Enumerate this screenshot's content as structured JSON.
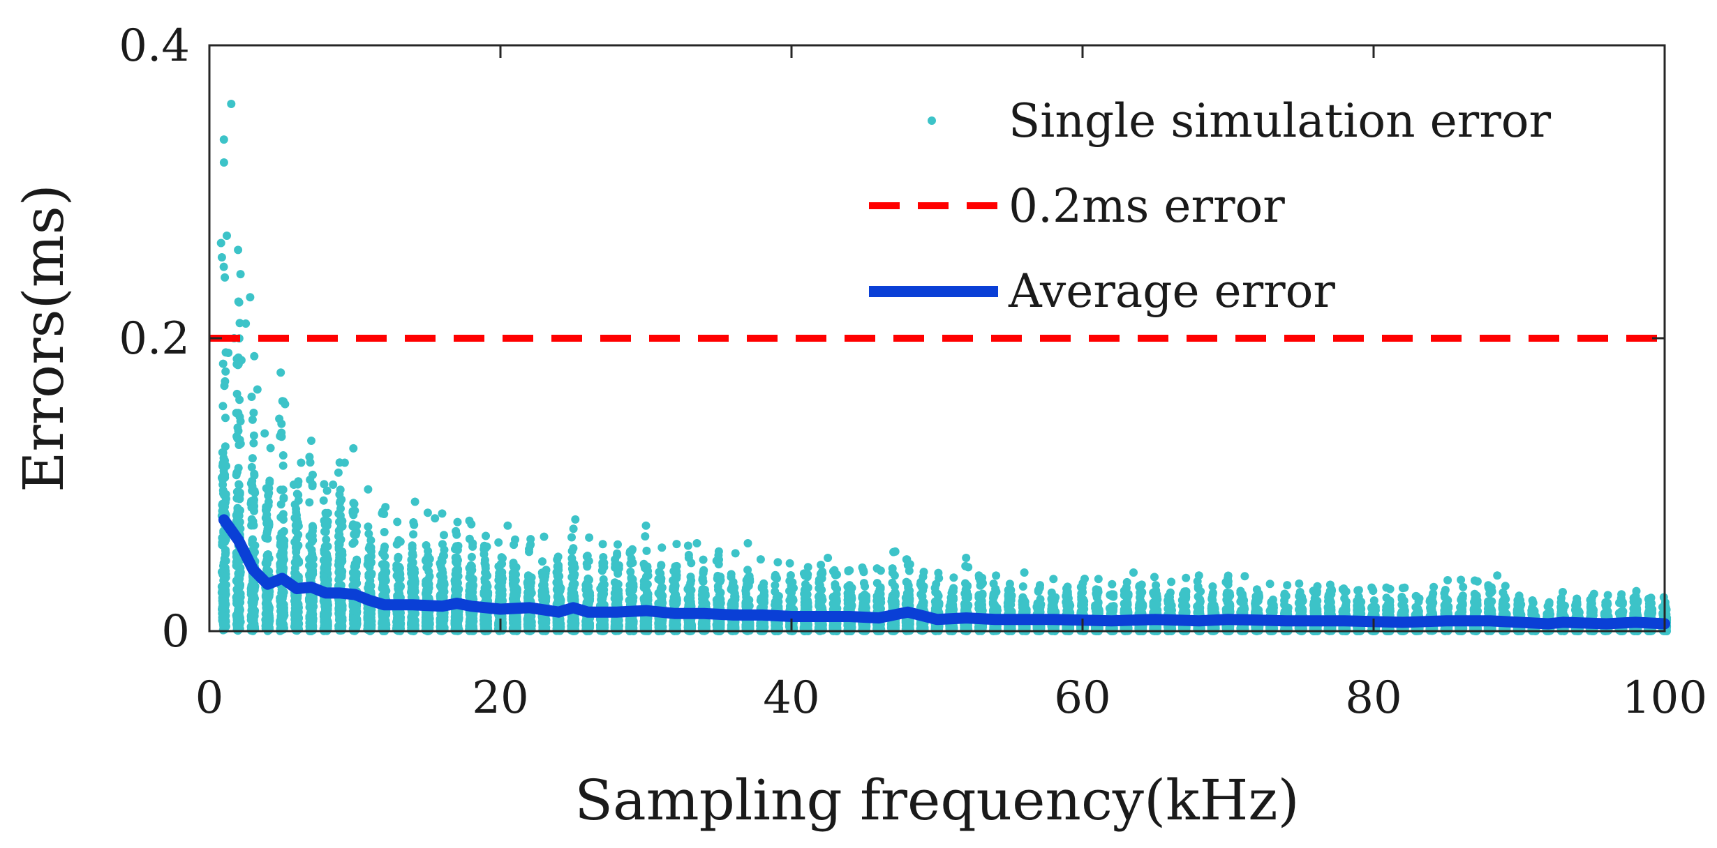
{
  "chart_data": {
    "type": "scatter",
    "title": "",
    "xlabel": "Sampling frequency(kHz)",
    "ylabel": "Errors(ms)",
    "xlim": [
      0,
      100
    ],
    "ylim": [
      0,
      0.4
    ],
    "xticks": [
      0,
      20,
      40,
      60,
      80,
      100
    ],
    "xtick_labels": [
      "0",
      "20",
      "40",
      "60",
      "80",
      "100"
    ],
    "yticks": [
      0,
      0.2,
      0.4
    ],
    "ytick_labels": [
      "0",
      "0.2",
      "0.4"
    ],
    "grid": false,
    "legend_position": "top-right",
    "series": [
      {
        "name": "Single simulation error",
        "kind": "scatter",
        "color": "#3cc3c8",
        "points_per_frequency": 150,
        "x_values": "1 to 100 kHz, step 1",
        "points": [
          [
            1.5,
            0.36
          ],
          [
            1.0,
            0.32
          ],
          [
            1.2,
            0.27
          ],
          [
            0.8,
            0.265
          ],
          [
            2.0,
            0.225
          ],
          [
            2.8,
            0.228
          ],
          [
            2.5,
            0.21
          ],
          [
            1.7,
            0.2
          ],
          [
            1.3,
            0.19
          ],
          [
            2.2,
            0.185
          ],
          [
            3.3,
            0.165
          ],
          [
            2.9,
            0.16
          ],
          [
            5.2,
            0.155
          ],
          [
            4.8,
            0.145
          ],
          [
            3.8,
            0.135
          ],
          [
            7.0,
            0.13
          ],
          [
            4.2,
            0.125
          ],
          [
            9.3,
            0.115
          ],
          [
            6.3,
            0.115
          ],
          [
            8.5,
            0.1
          ],
          [
            5.8,
            0.1
          ],
          [
            12.0,
            0.08
          ],
          [
            15.5,
            0.077
          ],
          [
            18.0,
            0.073
          ],
          [
            20.5,
            0.072
          ],
          [
            30.0,
            0.072
          ],
          [
            33.5,
            0.06
          ],
          [
            37.0,
            0.06
          ],
          [
            42.5,
            0.05
          ],
          [
            48.0,
            0.045
          ],
          [
            52.0,
            0.05
          ],
          [
            56.0,
            0.04
          ],
          [
            63.5,
            0.04
          ],
          [
            68.0,
            0.038
          ],
          [
            86.0,
            0.035
          ],
          [
            88.5,
            0.038
          ]
        ]
      },
      {
        "name": "0.2ms error",
        "kind": "reference_line",
        "color": "#ff0000",
        "y": 0.2
      },
      {
        "name": "Average error",
        "kind": "line",
        "color": "#0a3fd6",
        "x": [
          1,
          2,
          3,
          4,
          5,
          6,
          7,
          8,
          9,
          10,
          11,
          12,
          14,
          16,
          17,
          18,
          20,
          22,
          24,
          25,
          26,
          28,
          30,
          32,
          34,
          36,
          38,
          40,
          44,
          46,
          48,
          50,
          52,
          54,
          58,
          62,
          65,
          68,
          70,
          74,
          78,
          82,
          85,
          88,
          90,
          92,
          93,
          96,
          98,
          100
        ],
        "y": [
          0.076,
          0.062,
          0.042,
          0.032,
          0.036,
          0.029,
          0.03,
          0.026,
          0.026,
          0.025,
          0.021,
          0.018,
          0.018,
          0.017,
          0.019,
          0.017,
          0.015,
          0.016,
          0.013,
          0.016,
          0.013,
          0.013,
          0.014,
          0.012,
          0.012,
          0.011,
          0.011,
          0.01,
          0.01,
          0.009,
          0.013,
          0.008,
          0.009,
          0.008,
          0.008,
          0.007,
          0.008,
          0.007,
          0.008,
          0.007,
          0.007,
          0.006,
          0.007,
          0.007,
          0.006,
          0.005,
          0.006,
          0.005,
          0.006,
          0.005
        ]
      }
    ]
  }
}
